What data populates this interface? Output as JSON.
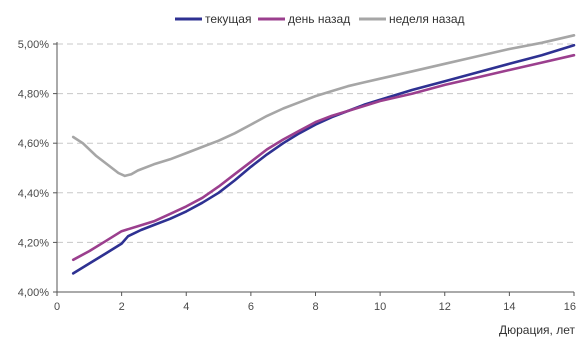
{
  "chart_data": {
    "type": "line",
    "title": "",
    "xlabel": "Дюрация, лет",
    "ylabel": "",
    "xlim": [
      0,
      16
    ],
    "ylim": [
      4.0,
      5.0
    ],
    "x_ticks": [
      0,
      2,
      4,
      6,
      8,
      10,
      12,
      14,
      16
    ],
    "x_tick_labels": [
      "0",
      "2",
      "4",
      "6",
      "8",
      "10",
      "12",
      "14",
      "16"
    ],
    "y_ticks": [
      4.0,
      4.2,
      4.4,
      4.6,
      4.8,
      5.0
    ],
    "y_tick_labels": [
      "4,00%",
      "4,20%",
      "4,40%",
      "4,60%",
      "4,80%",
      "5,00%"
    ],
    "grid": "horizontal dashed",
    "legend_position": "top",
    "series": [
      {
        "name": "текущая",
        "color": "#2e3192",
        "points": [
          [
            0.5,
            4.075
          ],
          [
            1.0,
            4.115
          ],
          [
            1.5,
            4.155
          ],
          [
            2.0,
            4.195
          ],
          [
            2.2,
            4.225
          ],
          [
            2.6,
            4.25
          ],
          [
            3.0,
            4.27
          ],
          [
            3.5,
            4.295
          ],
          [
            4.0,
            4.325
          ],
          [
            4.5,
            4.36
          ],
          [
            5.0,
            4.4
          ],
          [
            5.5,
            4.45
          ],
          [
            6.0,
            4.505
          ],
          [
            6.5,
            4.555
          ],
          [
            7.0,
            4.6
          ],
          [
            7.5,
            4.64
          ],
          [
            8.0,
            4.675
          ],
          [
            8.5,
            4.705
          ],
          [
            9.0,
            4.73
          ],
          [
            9.5,
            4.755
          ],
          [
            10.0,
            4.775
          ],
          [
            11.0,
            4.815
          ],
          [
            12.0,
            4.85
          ],
          [
            13.0,
            4.885
          ],
          [
            14.0,
            4.92
          ],
          [
            15.0,
            4.955
          ],
          [
            16.0,
            4.995
          ]
        ]
      },
      {
        "name": "день назад",
        "color": "#9b3f8e",
        "points": [
          [
            0.5,
            4.13
          ],
          [
            1.0,
            4.165
          ],
          [
            1.5,
            4.205
          ],
          [
            2.0,
            4.245
          ],
          [
            2.5,
            4.265
          ],
          [
            3.0,
            4.285
          ],
          [
            3.5,
            4.315
          ],
          [
            4.0,
            4.345
          ],
          [
            4.5,
            4.38
          ],
          [
            5.0,
            4.425
          ],
          [
            5.5,
            4.475
          ],
          [
            6.0,
            4.525
          ],
          [
            6.5,
            4.575
          ],
          [
            7.0,
            4.615
          ],
          [
            7.5,
            4.65
          ],
          [
            8.0,
            4.685
          ],
          [
            8.5,
            4.71
          ],
          [
            9.0,
            4.73
          ],
          [
            9.5,
            4.75
          ],
          [
            10.0,
            4.77
          ],
          [
            11.0,
            4.8
          ],
          [
            12.0,
            4.835
          ],
          [
            13.0,
            4.865
          ],
          [
            14.0,
            4.895
          ],
          [
            15.0,
            4.925
          ],
          [
            16.0,
            4.955
          ]
        ]
      },
      {
        "name": "неделя назад",
        "color": "#a6a6a6",
        "points": [
          [
            0.5,
            4.625
          ],
          [
            0.8,
            4.6
          ],
          [
            1.2,
            4.55
          ],
          [
            1.6,
            4.51
          ],
          [
            1.9,
            4.48
          ],
          [
            2.1,
            4.468
          ],
          [
            2.3,
            4.475
          ],
          [
            2.5,
            4.49
          ],
          [
            3.0,
            4.515
          ],
          [
            3.5,
            4.535
          ],
          [
            4.0,
            4.56
          ],
          [
            4.5,
            4.585
          ],
          [
            5.0,
            4.61
          ],
          [
            5.5,
            4.64
          ],
          [
            6.0,
            4.675
          ],
          [
            6.5,
            4.71
          ],
          [
            7.0,
            4.74
          ],
          [
            7.5,
            4.765
          ],
          [
            8.0,
            4.79
          ],
          [
            8.5,
            4.81
          ],
          [
            9.0,
            4.83
          ],
          [
            9.5,
            4.845
          ],
          [
            10.0,
            4.86
          ],
          [
            11.0,
            4.89
          ],
          [
            12.0,
            4.92
          ],
          [
            13.0,
            4.95
          ],
          [
            14.0,
            4.98
          ],
          [
            15.0,
            5.005
          ],
          [
            16.0,
            5.035
          ]
        ]
      }
    ]
  }
}
